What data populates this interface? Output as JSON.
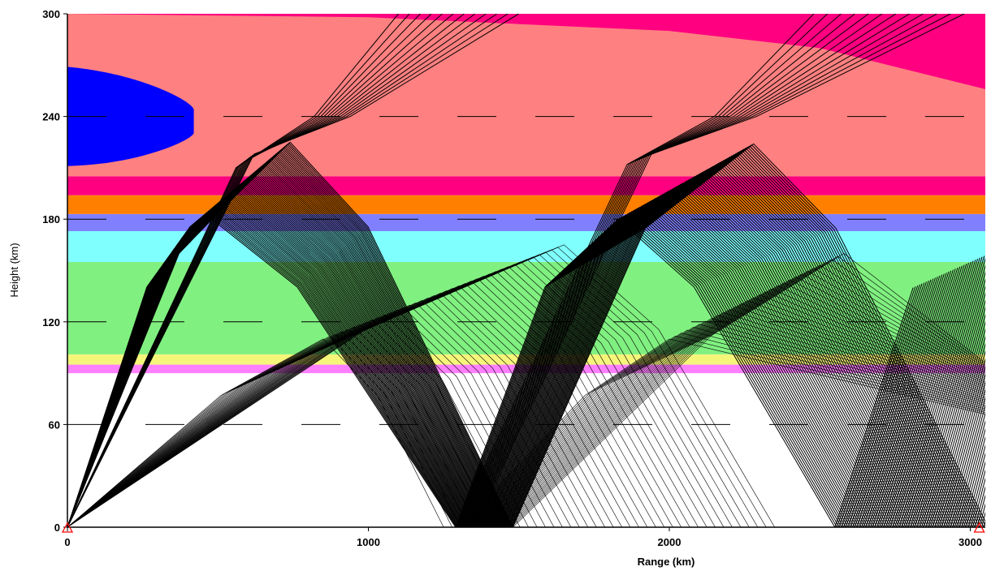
{
  "chart_data": {
    "type": "ray-trace",
    "xlabel": "Range (km)",
    "ylabel": "Height (km)",
    "xlim": [
      0,
      3050
    ],
    "ylim": [
      0,
      300
    ],
    "x_ticks": [
      {
        "value": 0,
        "label": "0"
      },
      {
        "value": 1000,
        "label": "1000"
      },
      {
        "value": 2000,
        "label": "2000"
      },
      {
        "value": 3000,
        "label": "3000"
      }
    ],
    "y_ticks": [
      {
        "value": 0,
        "label": "0"
      },
      {
        "value": 60,
        "label": "60"
      },
      {
        "value": 120,
        "label": "120"
      },
      {
        "value": 180,
        "label": "180"
      },
      {
        "value": 240,
        "label": "240"
      },
      {
        "value": 300,
        "label": "300"
      }
    ],
    "dashed_reference_heights": [
      60,
      120,
      180,
      240
    ],
    "transmitter_range_km": 0,
    "receiver_range_km": 3030,
    "layers": [
      {
        "name": "band-90-95",
        "color": "#ff80ff",
        "from_km": 90,
        "to_km": 95
      },
      {
        "name": "band-95-100",
        "color": "#f5f57a",
        "from_km": 95,
        "to_km": 101
      },
      {
        "name": "band-100-155",
        "color": "#80f080",
        "from_km": 101,
        "to_km": 155
      },
      {
        "name": "band-155-173",
        "color": "#80ffff",
        "from_km": 155,
        "to_km": 173
      },
      {
        "name": "band-173-183",
        "color": "#8080ff",
        "from_km": 173,
        "to_km": 183
      },
      {
        "name": "band-183-194",
        "color": "#ff8000",
        "from_km": 183,
        "to_km": 194
      },
      {
        "name": "band-194-205",
        "color": "#ff0080",
        "from_km": 194,
        "to_km": 205
      },
      {
        "name": "band-205-top",
        "color": "#ff8080",
        "from_km": 205,
        "to_km": 300
      }
    ],
    "upper_magenta_boundary": [
      [
        0,
        300
      ],
      [
        1000,
        298
      ],
      [
        2000,
        290
      ],
      [
        2500,
        280
      ],
      [
        3050,
        256
      ]
    ],
    "blue_region": {
      "color": "#0000ff",
      "center_height_km": 240,
      "half_height_km": 29,
      "max_range_km": 420
    },
    "ray_colors": {
      "rays": "#000000",
      "markers": "#ff0000"
    },
    "hop_apex_range_km": [
      650,
      1920
    ],
    "ground_landing_range_km": [
      [
        1270,
        1470
      ],
      [
        2590,
        2780
      ]
    ]
  }
}
